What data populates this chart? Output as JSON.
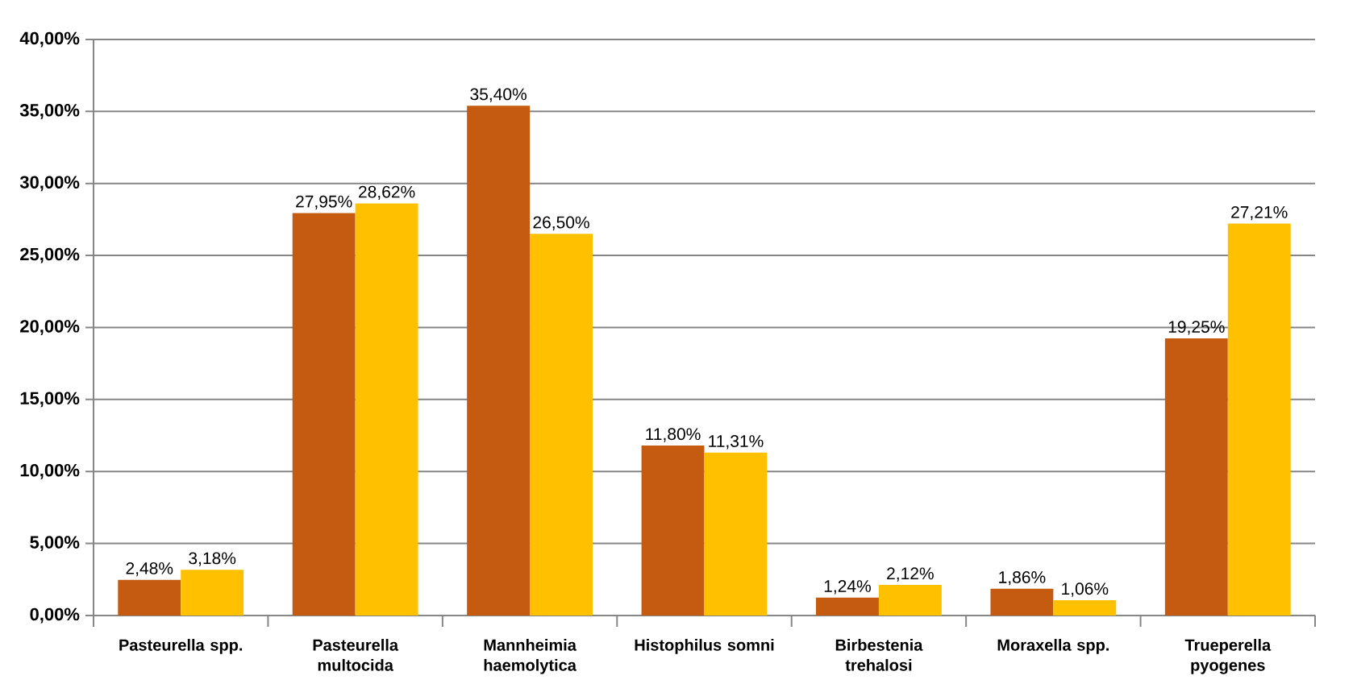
{
  "chart_data": {
    "type": "bar",
    "categories": [
      "Pasteurella spp.",
      "Pasteurella multocida",
      "Mannheimia haemolytica",
      "Histophilus somni",
      "Birbestenia trehalosi",
      "Moraxella  spp.",
      "Trueperella pyogenes"
    ],
    "series": [
      {
        "color": "#c55a11",
        "values": [
          2.48,
          27.95,
          35.4,
          11.8,
          1.24,
          1.86,
          19.25
        ],
        "value_labels": [
          "2,48%",
          "27,95%",
          "35,40%",
          "11,80%",
          "1,24%",
          "1,86%",
          "19,25%"
        ]
      },
      {
        "color": "#ffc000",
        "values": [
          3.18,
          28.62,
          26.5,
          11.31,
          2.12,
          1.06,
          27.21
        ],
        "value_labels": [
          "3,18%",
          "28,62%",
          "26,50%",
          "11,31%",
          "2,12%",
          "1,06%",
          "27,21%"
        ]
      }
    ],
    "ylim": [
      0,
      40
    ],
    "yticks": [
      {
        "value": 0,
        "label": "0,00%"
      },
      {
        "value": 5,
        "label": "5,00%"
      },
      {
        "value": 10,
        "label": "10,00%"
      },
      {
        "value": 15,
        "label": "15,00%"
      },
      {
        "value": 20,
        "label": "20,00%"
      },
      {
        "value": 25,
        "label": "25,00%"
      },
      {
        "value": 30,
        "label": "30,00%"
      },
      {
        "value": 35,
        "label": "35,00%"
      },
      {
        "value": 40,
        "label": "40,00%"
      }
    ],
    "grid": "y"
  }
}
